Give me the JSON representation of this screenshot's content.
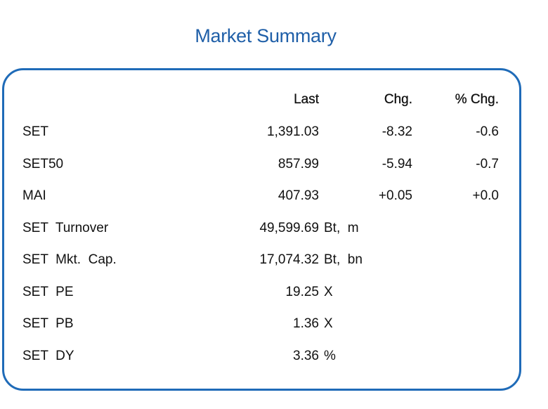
{
  "title": "Market Summary",
  "headers": {
    "last": "Last",
    "chg": "Chg.",
    "pct": "% Chg."
  },
  "rows": [
    {
      "name": "SET",
      "last": "1,391.03",
      "unit": "",
      "chg": "-8.32",
      "pct": "-0.6"
    },
    {
      "name": "SET50",
      "last": "857.99",
      "unit": "",
      "chg": "-5.94",
      "pct": "-0.7"
    },
    {
      "name": "MAI",
      "last": "407.93",
      "unit": "",
      "chg": "+0.05",
      "pct": "+0.0"
    },
    {
      "name": "SET  Turnover",
      "last": "49,599.69",
      "unit": "Bt,  m",
      "chg": "",
      "pct": ""
    },
    {
      "name": "SET  Mkt.  Cap.",
      "last": "17,074.32",
      "unit": "Bt,  bn",
      "chg": "",
      "pct": ""
    },
    {
      "name": "SET  PE",
      "last": "19.25",
      "unit": "X",
      "chg": "",
      "pct": ""
    },
    {
      "name": "SET  PB",
      "last": "1.36",
      "unit": "X",
      "chg": "",
      "pct": ""
    },
    {
      "name": "SET  DY",
      "last": "3.36",
      "unit": "%",
      "chg": "",
      "pct": ""
    }
  ],
  "colors": {
    "title": "#1f5fa8",
    "border": "#1f6bb8"
  }
}
